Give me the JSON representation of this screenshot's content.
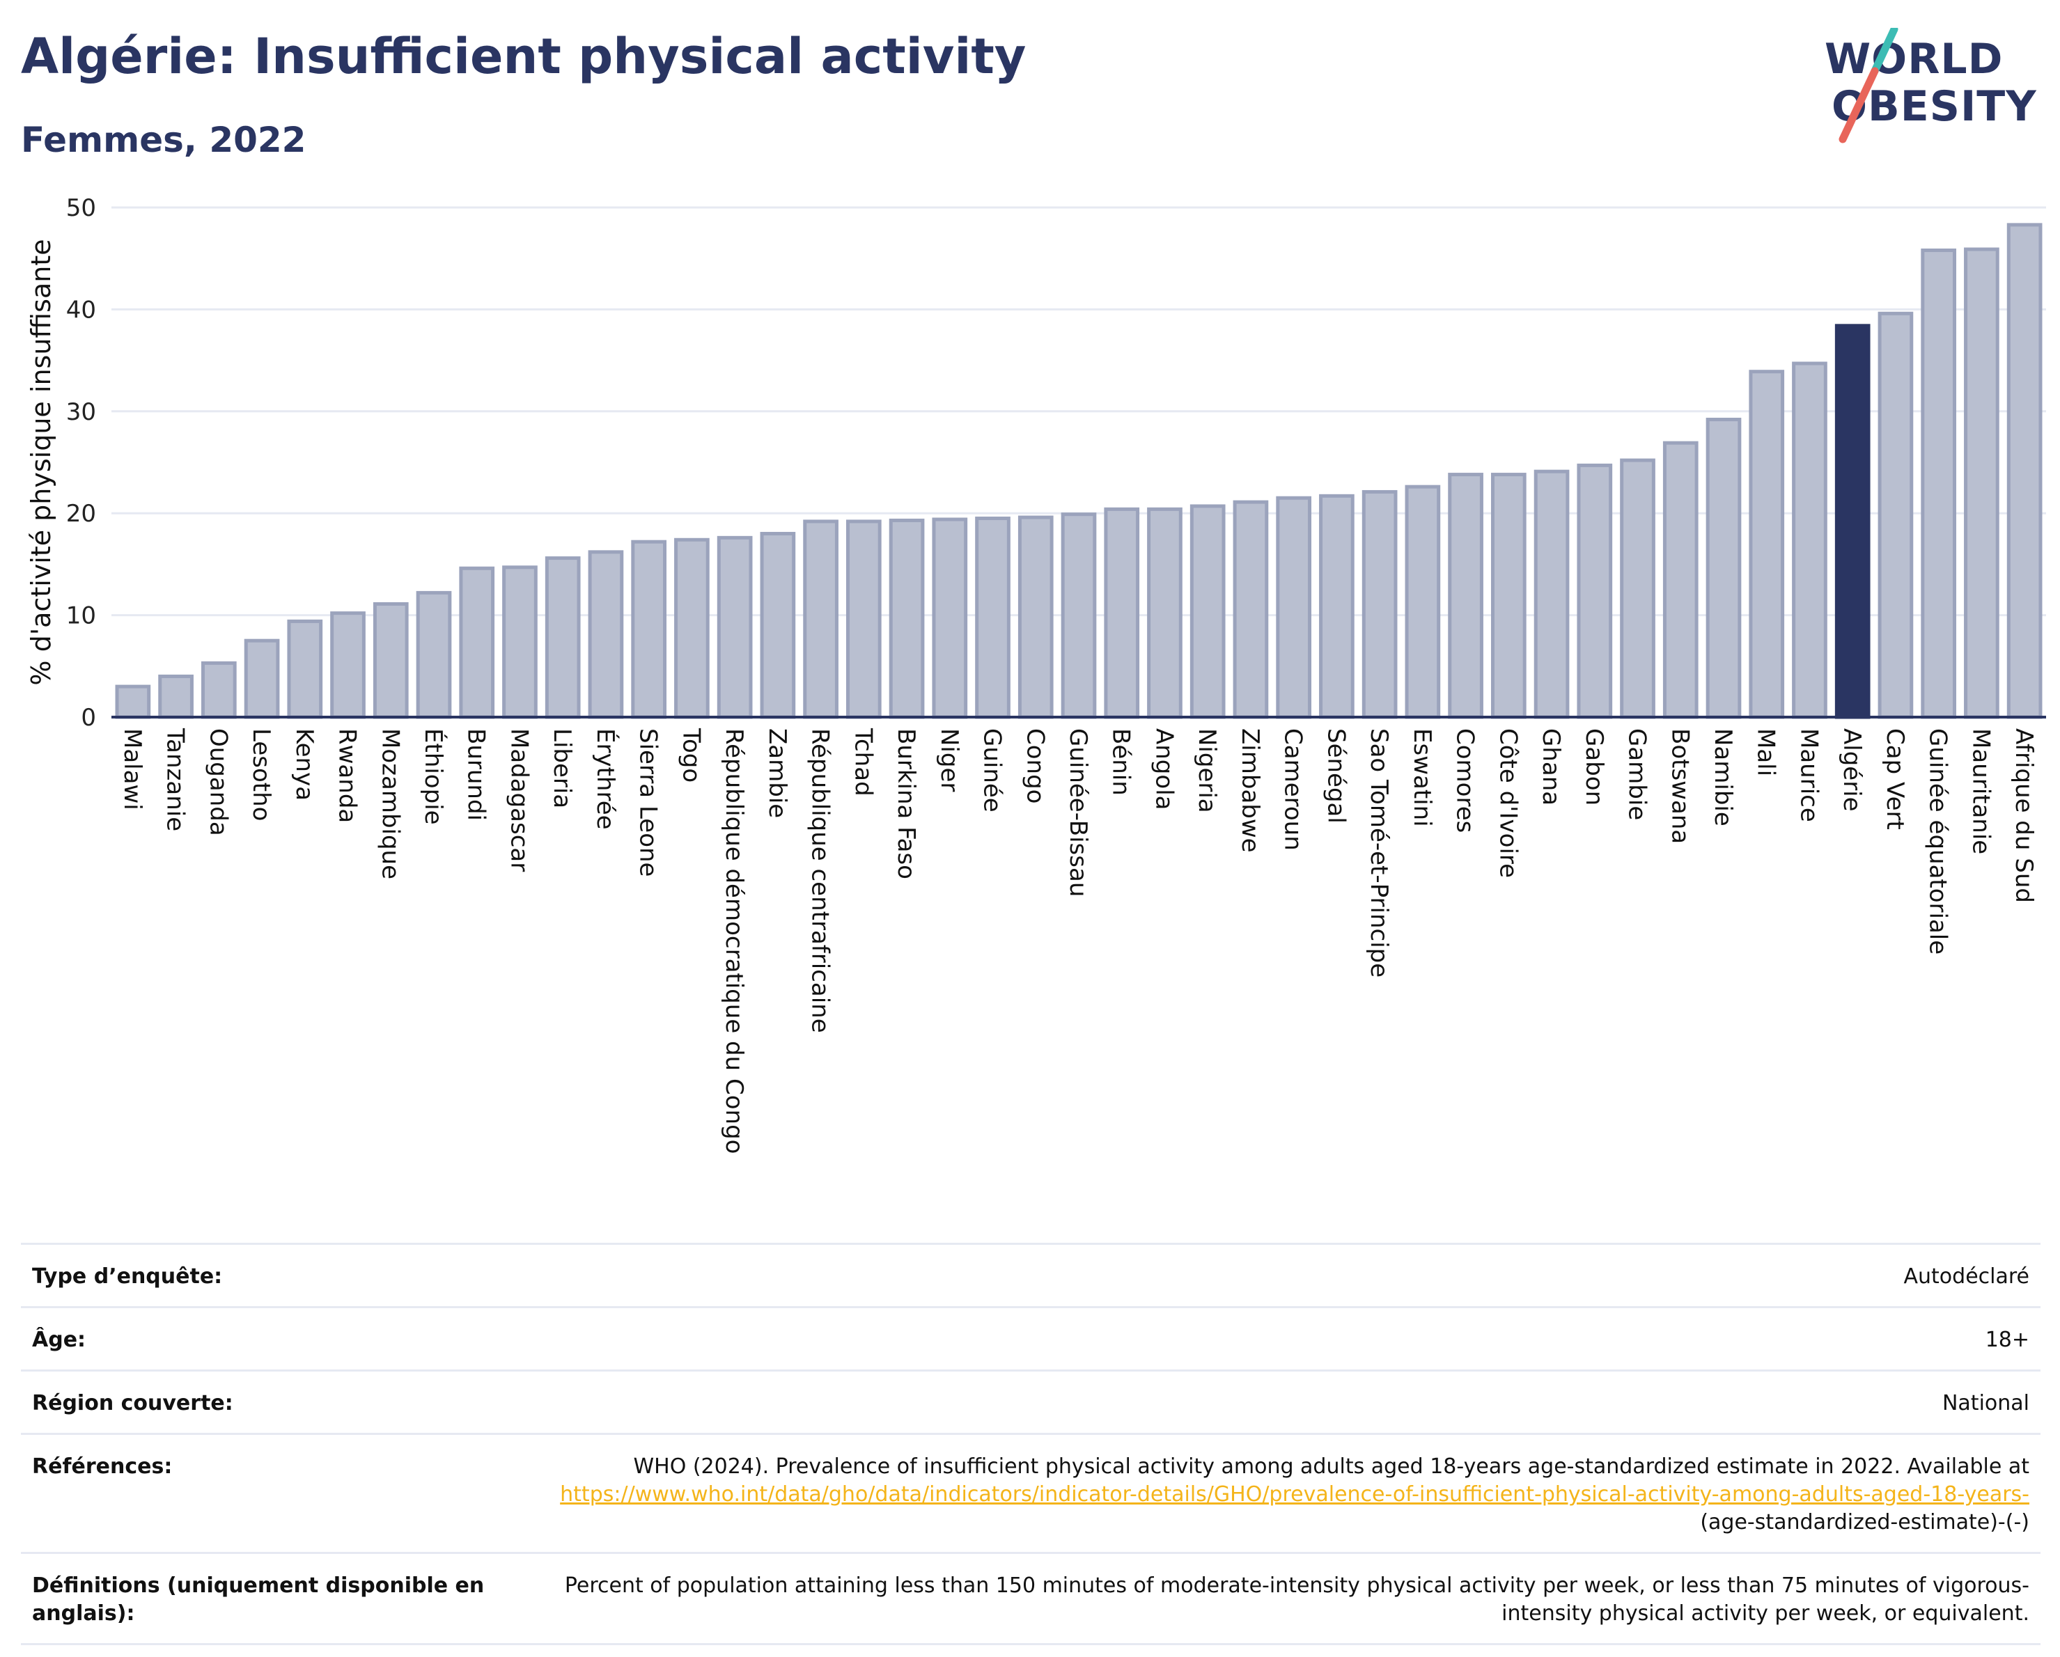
{
  "header": {
    "title": "Algérie: Insufficient physical activity",
    "subtitle": "Femmes, 2022"
  },
  "logo": {
    "line1": "WORLD",
    "line2": "OBESITY",
    "accent_teal": "#3cbcb4",
    "accent_red": "#e8655a"
  },
  "colors": {
    "bar": "#b9bfd0",
    "bar_stroke": "#9ba3bc",
    "highlight": "#2a3562",
    "grid": "#e6e9f2",
    "axis": "#2a3562"
  },
  "chart_data": {
    "type": "bar",
    "title": "Algérie: Insufficient physical activity",
    "subtitle": "Femmes, 2022",
    "ylabel": "% d'activité physique insuffisante",
    "xlabel": "",
    "ylim": [
      0,
      50
    ],
    "yticks": [
      0,
      10,
      20,
      30,
      40,
      50
    ],
    "grid": true,
    "highlight": "Algérie",
    "categories": [
      "Malawi",
      "Tanzanie",
      "Ouganda",
      "Lesotho",
      "Kenya",
      "Rwanda",
      "Mozambique",
      "Éthiopie",
      "Burundi",
      "Madagascar",
      "Liberia",
      "Érythrée",
      "Sierra Leone",
      "Togo",
      "République démocratique du Congo",
      "Zambie",
      "République centrafricaine",
      "Tchad",
      "Burkina Faso",
      "Niger",
      "Guinée",
      "Congo",
      "Guinée-Bissau",
      "Bénin",
      "Angola",
      "Nigeria",
      "Zimbabwe",
      "Cameroun",
      "Sénégal",
      "Sao Tomé-et-Principe",
      "Eswatini",
      "Comores",
      "Côte d'Ivoire",
      "Ghana",
      "Gabon",
      "Gambie",
      "Botswana",
      "Namibie",
      "Mali",
      "Maurice",
      "Algérie",
      "Cap Vert",
      "Guinée équatoriale",
      "Mauritanie",
      "Afrique du Sud"
    ],
    "values": [
      3.0,
      4.0,
      5.3,
      7.5,
      9.4,
      10.2,
      11.1,
      12.2,
      14.6,
      14.7,
      15.6,
      16.2,
      17.2,
      17.4,
      17.6,
      18.0,
      19.2,
      19.2,
      19.3,
      19.4,
      19.5,
      19.6,
      19.9,
      20.4,
      20.4,
      20.7,
      21.1,
      21.5,
      21.7,
      22.1,
      22.6,
      23.8,
      23.8,
      24.1,
      24.7,
      25.2,
      26.9,
      29.2,
      33.9,
      34.7,
      38.4,
      39.6,
      45.8,
      45.9,
      48.3
    ]
  },
  "info": {
    "survey_type_label": "Type d’enquête:",
    "survey_type_value": "Autodéclaré",
    "age_label": "Âge:",
    "age_value": "18+",
    "region_label": "Région couverte:",
    "region_value": "National",
    "references_label": "Références:",
    "references_text": "WHO (2024). Prevalence of insufficient physical activity among adults aged 18-years age-standardized estimate in 2022. Available at",
    "references_link": "https://www.who.int/data/gho/data/indicators/indicator-details/GHO/prevalence-of-insufficient-physical-activity-among-adults-aged-18-years-",
    "references_suffix": "(age-standardized-estimate)-(-)",
    "definitions_label": "Définitions (uniquement disponible en anglais):",
    "definitions_value": "Percent of population attaining less than 150 minutes of moderate-intensity physical activity per week, or less than 75 minutes of vigorous-intensity physical activity per week, or equivalent."
  }
}
